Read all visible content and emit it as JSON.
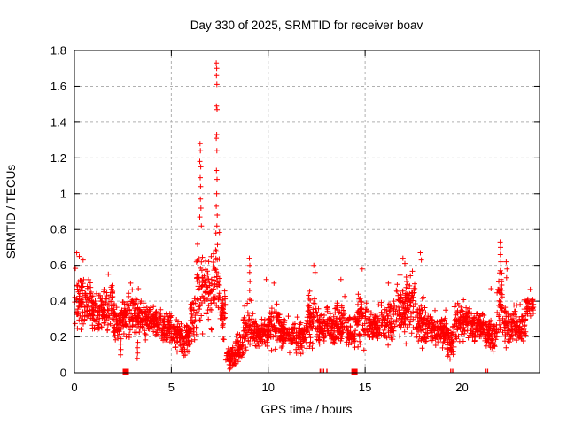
{
  "window": {
    "background": "#ffffff"
  },
  "chart_data": {
    "type": "scatter",
    "title": "Day 330 of 2025, SRMTID for receiver boav",
    "xlabel": "GPS time / hours",
    "ylabel": "SRMTID / TECUs",
    "xlim": [
      0,
      24
    ],
    "ylim": [
      0,
      1.8
    ],
    "xticks": [
      0,
      5,
      10,
      15,
      20
    ],
    "yticks": [
      0,
      0.2,
      0.4,
      0.6,
      0.8,
      1,
      1.2,
      1.4,
      1.6,
      1.8
    ],
    "grid": true,
    "grid_style": "dashed-gray",
    "legend": false,
    "marker": "plus",
    "marker_color": "#ff0000",
    "grid_color": "#b0b0b0",
    "frame_color": "#000000",
    "series_name": "SRMTID for receiver boav",
    "envelope_bins": [
      [
        0.0,
        0.5,
        0.42,
        0.13,
        55
      ],
      [
        0.5,
        1.0,
        0.38,
        0.12,
        55
      ],
      [
        1.0,
        1.5,
        0.33,
        0.09,
        55
      ],
      [
        1.5,
        2.0,
        0.36,
        0.1,
        55
      ],
      [
        2.0,
        2.5,
        0.3,
        0.1,
        55
      ],
      [
        2.5,
        3.0,
        0.33,
        0.1,
        55
      ],
      [
        3.0,
        3.5,
        0.32,
        0.09,
        55
      ],
      [
        3.5,
        4.0,
        0.31,
        0.08,
        55
      ],
      [
        4.0,
        4.5,
        0.28,
        0.07,
        55
      ],
      [
        4.5,
        5.0,
        0.25,
        0.06,
        55
      ],
      [
        5.0,
        5.5,
        0.22,
        0.07,
        55
      ],
      [
        5.5,
        6.0,
        0.2,
        0.08,
        55
      ],
      [
        6.0,
        6.3,
        0.3,
        0.1,
        33
      ],
      [
        6.3,
        6.7,
        0.5,
        0.22,
        44
      ],
      [
        6.7,
        7.1,
        0.45,
        0.16,
        44
      ],
      [
        7.1,
        7.5,
        0.55,
        0.2,
        44
      ],
      [
        7.5,
        7.8,
        0.33,
        0.12,
        33
      ],
      [
        7.8,
        8.3,
        0.08,
        0.05,
        55
      ],
      [
        8.3,
        8.7,
        0.13,
        0.06,
        44
      ],
      [
        8.7,
        9.2,
        0.25,
        0.1,
        55
      ],
      [
        9.2,
        10.0,
        0.22,
        0.07,
        88
      ],
      [
        10.0,
        10.6,
        0.27,
        0.1,
        66
      ],
      [
        10.6,
        11.3,
        0.22,
        0.07,
        77
      ],
      [
        11.3,
        12.0,
        0.2,
        0.07,
        77
      ],
      [
        12.0,
        12.6,
        0.3,
        0.12,
        66
      ],
      [
        12.6,
        13.3,
        0.25,
        0.09,
        77
      ],
      [
        13.3,
        14.0,
        0.28,
        0.1,
        77
      ],
      [
        14.0,
        14.6,
        0.24,
        0.08,
        66
      ],
      [
        14.6,
        15.1,
        0.3,
        0.11,
        55
      ],
      [
        15.1,
        15.8,
        0.25,
        0.08,
        77
      ],
      [
        15.8,
        16.5,
        0.28,
        0.1,
        77
      ],
      [
        16.5,
        17.1,
        0.36,
        0.13,
        66
      ],
      [
        17.1,
        17.6,
        0.38,
        0.14,
        55
      ],
      [
        17.6,
        18.3,
        0.28,
        0.1,
        77
      ],
      [
        18.3,
        19.2,
        0.24,
        0.08,
        99
      ],
      [
        19.2,
        19.6,
        0.18,
        0.07,
        44
      ],
      [
        19.6,
        20.4,
        0.28,
        0.09,
        88
      ],
      [
        20.4,
        21.2,
        0.26,
        0.08,
        88
      ],
      [
        21.2,
        21.8,
        0.22,
        0.08,
        66
      ],
      [
        21.8,
        22.1,
        0.4,
        0.15,
        33
      ],
      [
        22.1,
        22.8,
        0.26,
        0.09,
        77
      ],
      [
        22.8,
        23.3,
        0.27,
        0.09,
        55
      ],
      [
        23.3,
        23.7,
        0.37,
        0.06,
        33
      ]
    ],
    "outlier_points": [
      [
        6.48,
        1.28
      ],
      [
        6.5,
        1.24
      ],
      [
        6.47,
        1.18
      ],
      [
        6.52,
        1.15
      ],
      [
        6.49,
        1.09
      ],
      [
        6.51,
        1.04
      ],
      [
        6.5,
        0.97
      ],
      [
        6.53,
        0.92
      ],
      [
        6.47,
        0.87
      ],
      [
        6.55,
        0.82
      ],
      [
        7.32,
        1.73
      ],
      [
        7.34,
        1.7
      ],
      [
        7.33,
        1.66
      ],
      [
        7.35,
        1.61
      ],
      [
        7.33,
        1.49
      ],
      [
        7.36,
        1.47
      ],
      [
        7.34,
        1.33
      ],
      [
        7.32,
        1.31
      ],
      [
        7.35,
        1.24
      ],
      [
        7.33,
        1.13
      ],
      [
        7.36,
        1.08
      ],
      [
        7.34,
        1.0
      ],
      [
        7.32,
        0.93
      ],
      [
        7.37,
        0.88
      ],
      [
        7.35,
        0.82
      ],
      [
        7.3,
        0.78
      ],
      [
        9.03,
        0.64
      ],
      [
        9.05,
        0.6
      ],
      [
        9.04,
        0.56
      ],
      [
        9.06,
        0.51
      ],
      [
        9.04,
        0.46
      ],
      [
        9.05,
        0.41
      ],
      [
        0.12,
        0.67
      ],
      [
        0.25,
        0.65
      ],
      [
        0.45,
        0.63
      ],
      [
        1.75,
        0.55
      ],
      [
        2.9,
        0.5
      ],
      [
        3.3,
        0.47
      ],
      [
        9.9,
        0.52
      ],
      [
        10.3,
        0.5
      ],
      [
        12.35,
        0.6
      ],
      [
        12.42,
        0.56
      ],
      [
        13.75,
        0.52
      ],
      [
        14.85,
        0.58
      ],
      [
        16.2,
        0.5
      ],
      [
        16.95,
        0.64
      ],
      [
        17.05,
        0.61
      ],
      [
        17.85,
        0.67
      ],
      [
        17.9,
        0.63
      ],
      [
        21.5,
        0.47
      ],
      [
        2.38,
        0.1
      ],
      [
        2.4,
        0.13
      ],
      [
        2.39,
        0.16
      ],
      [
        2.41,
        0.19
      ],
      [
        3.24,
        0.08
      ],
      [
        3.26,
        0.11
      ],
      [
        3.25,
        0.14
      ],
      [
        3.27,
        0.17
      ],
      [
        8.05,
        0.03
      ],
      [
        8.15,
        0.04
      ],
      [
        19.3,
        0.1
      ],
      [
        19.35,
        0.13
      ],
      [
        21.97,
        0.73
      ],
      [
        21.99,
        0.7
      ],
      [
        21.98,
        0.66
      ],
      [
        22.0,
        0.62
      ],
      [
        21.98,
        0.57
      ],
      [
        22.01,
        0.52
      ],
      [
        21.99,
        0.47
      ],
      [
        22.28,
        0.62
      ],
      [
        22.32,
        0.58
      ],
      [
        22.3,
        0.53
      ]
    ],
    "zero_marks": {
      "blobs": [
        2.65,
        14.45
      ],
      "ticks": [
        12.68,
        12.77,
        12.86,
        13.03,
        19.42,
        19.52,
        21.22,
        21.32
      ]
    }
  }
}
